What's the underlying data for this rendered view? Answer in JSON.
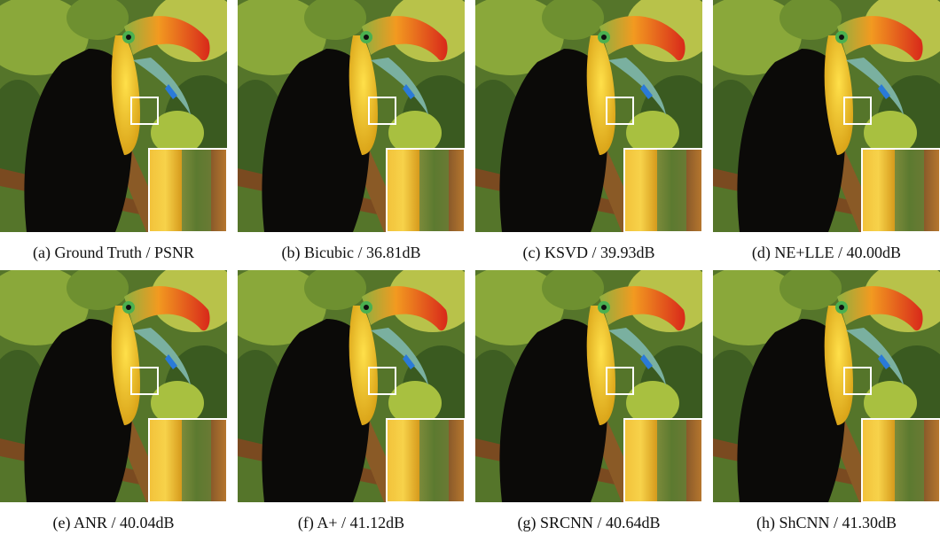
{
  "figure": {
    "panels": [
      {
        "caption": "(a) Ground Truth / PSNR"
      },
      {
        "caption": "(b) Bicubic / 36.81dB"
      },
      {
        "caption": "(c) KSVD / 39.93dB"
      },
      {
        "caption": "(d) NE+LLE / 40.00dB"
      },
      {
        "caption": "(e) ANR / 40.04dB"
      },
      {
        "caption": "(f) A+ / 41.12dB"
      },
      {
        "caption": "(g) SRCNN / 40.64dB"
      },
      {
        "caption": "(h) ShCNN / 41.30dB"
      }
    ]
  }
}
